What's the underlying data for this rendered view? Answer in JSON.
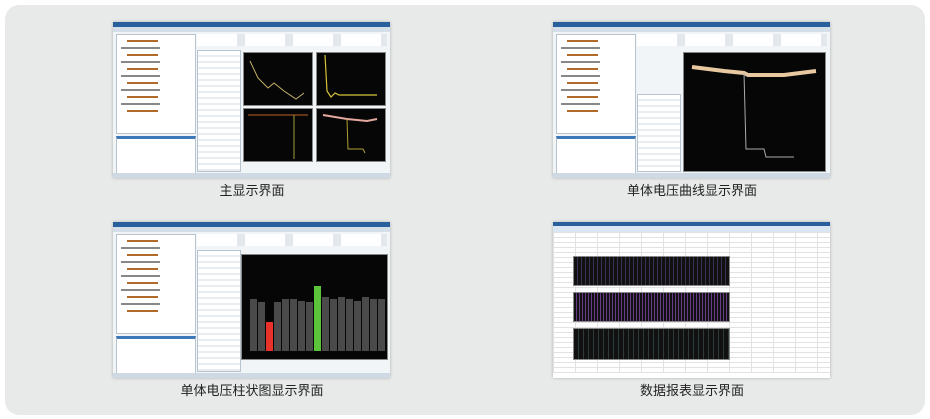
{
  "panels": [
    {
      "caption": "主显示界面",
      "view": "main-display"
    },
    {
      "caption": "单体电压曲线显示界面",
      "view": "cell-voltage-curve"
    },
    {
      "caption": "单体电压柱状图显示界面",
      "view": "cell-voltage-bar"
    },
    {
      "caption": "数据报表显示界面",
      "view": "data-report"
    }
  ],
  "bar_levels": [
    0.58,
    0.55,
    0.32,
    0.55,
    0.58,
    0.58,
    0.56,
    0.55,
    0.72,
    0.6,
    0.58,
    0.6,
    0.58,
    0.56,
    0.6,
    0.58,
    0.58
  ],
  "bar_colors": {
    "normal": "#4a4a4a",
    "low": "#e8322a",
    "high": "#5cc43a"
  },
  "colors": {
    "title_bar": "#2a5f9e",
    "background": "#e8eae9"
  }
}
